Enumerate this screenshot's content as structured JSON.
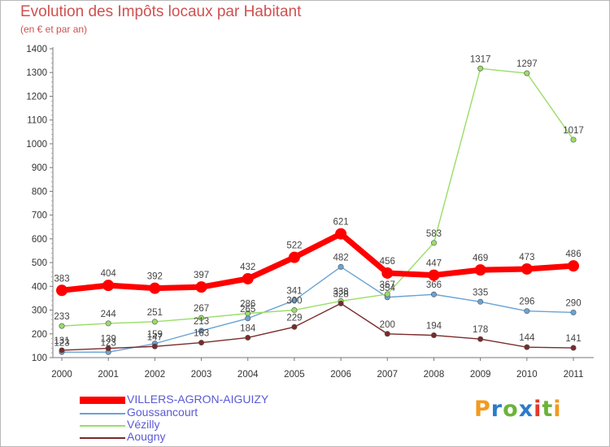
{
  "chart_data": {
    "type": "line",
    "title": "Evolution des Impôts locaux par Habitant",
    "subtitle": "(en € et par an)",
    "x": [
      "2000",
      "2001",
      "2002",
      "2003",
      "2004",
      "2005",
      "2006",
      "2007",
      "2008",
      "2009",
      "2010",
      "2011"
    ],
    "ylim": [
      100,
      1400
    ],
    "yticks": [
      100,
      200,
      300,
      400,
      500,
      600,
      700,
      800,
      900,
      1000,
      1100,
      1200,
      1300,
      1400
    ],
    "grid": false,
    "legend_position": "bottom-left",
    "series": [
      {
        "name": "VILLERS-AGRON-AIGUIZY",
        "color": "#ff0000",
        "values": [
          383,
          404,
          392,
          397,
          432,
          522,
          621,
          456,
          447,
          469,
          473,
          486
        ]
      },
      {
        "name": "Goussancourt",
        "color": "#6aa3d5",
        "values": [
          123,
          123,
          159,
          213,
          265,
          341,
          482,
          354,
          366,
          335,
          296,
          290
        ]
      },
      {
        "name": "Vézilly",
        "color": "#99dd66",
        "values": [
          233,
          244,
          251,
          267,
          286,
          300,
          338,
          367,
          583,
          1317,
          1297,
          1017
        ]
      },
      {
        "name": "Aougny",
        "color": "#7a2a2a",
        "values": [
          131,
          139,
          147,
          163,
          184,
          229,
          328,
          200,
          194,
          178,
          144,
          141
        ]
      }
    ]
  },
  "brand": {
    "text": "Proxiti",
    "letter_colors": [
      "#f29a1e",
      "#2b7ccc",
      "#6bb33a",
      "#2b7ccc",
      "#e23a2a",
      "#6bb33a",
      "#f29a1e"
    ]
  }
}
